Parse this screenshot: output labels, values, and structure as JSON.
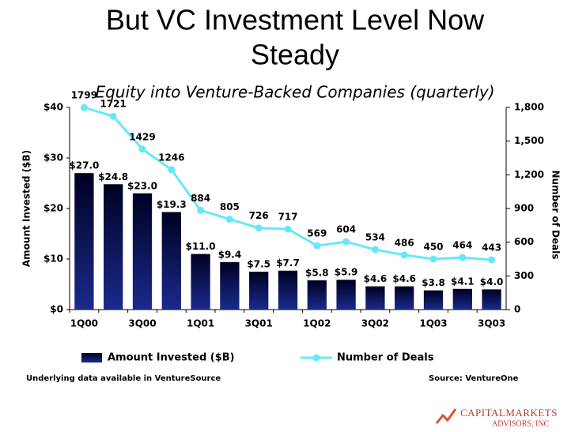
{
  "chart_data": {
    "type": "bar",
    "title": "But VC Investment Level Now Steady",
    "subtitle": "Equity into Venture-Backed Companies (quarterly)",
    "ylabel": "Amount Invested ($B)",
    "y2label": "Number of Deals",
    "categories": [
      "1Q00",
      null,
      "3Q00",
      null,
      "1Q01",
      null,
      "3Q01",
      null,
      "1Q02",
      null,
      "3Q02",
      null,
      "1Q03",
      null,
      "3Q03"
    ],
    "series": [
      {
        "name": "Amount Invested ($B)",
        "type": "bar",
        "color": "#1a2a8c",
        "values": [
          27.0,
          24.8,
          23.0,
          19.3,
          11.0,
          9.4,
          7.5,
          7.7,
          5.8,
          5.9,
          4.6,
          4.6,
          3.8,
          4.1,
          4.0
        ],
        "value_labels": [
          "$27.0",
          "$24.8",
          "$23.0",
          "$19.3",
          "$11.0",
          "$9.4",
          "$7.5",
          "$7.7",
          "$5.8",
          "$5.9",
          "$4.6",
          "$4.6",
          "$3.8",
          "$4.1",
          "$4.0"
        ]
      },
      {
        "name": "Number of Deals",
        "type": "line",
        "axis": "y2",
        "color": "#66e8f8",
        "values": [
          1799,
          1721,
          1429,
          1246,
          884,
          805,
          726,
          717,
          569,
          604,
          534,
          486,
          450,
          464,
          443
        ]
      }
    ],
    "ylim": [
      0,
      40
    ],
    "yticks": [
      {
        "value": 0,
        "label": "$0"
      },
      {
        "value": 10,
        "label": "$10"
      },
      {
        "value": 20,
        "label": "$20"
      },
      {
        "value": 30,
        "label": "$30"
      },
      {
        "value": 40,
        "label": "$40"
      }
    ],
    "y2lim": [
      0,
      1800
    ],
    "y2ticks": [
      0,
      300,
      600,
      900,
      {
        "value": 1200,
        "label": "1,200"
      },
      {
        "value": 1500,
        "label": "1,500"
      },
      {
        "value": 1800,
        "label": "1,800"
      }
    ],
    "legend": "bottom",
    "notes": [
      "Underlying data available in VentureSource",
      "Source: VentureOne"
    ],
    "logo": [
      "CAPITALMARKETS",
      "ADVISORS, INC"
    ]
  }
}
